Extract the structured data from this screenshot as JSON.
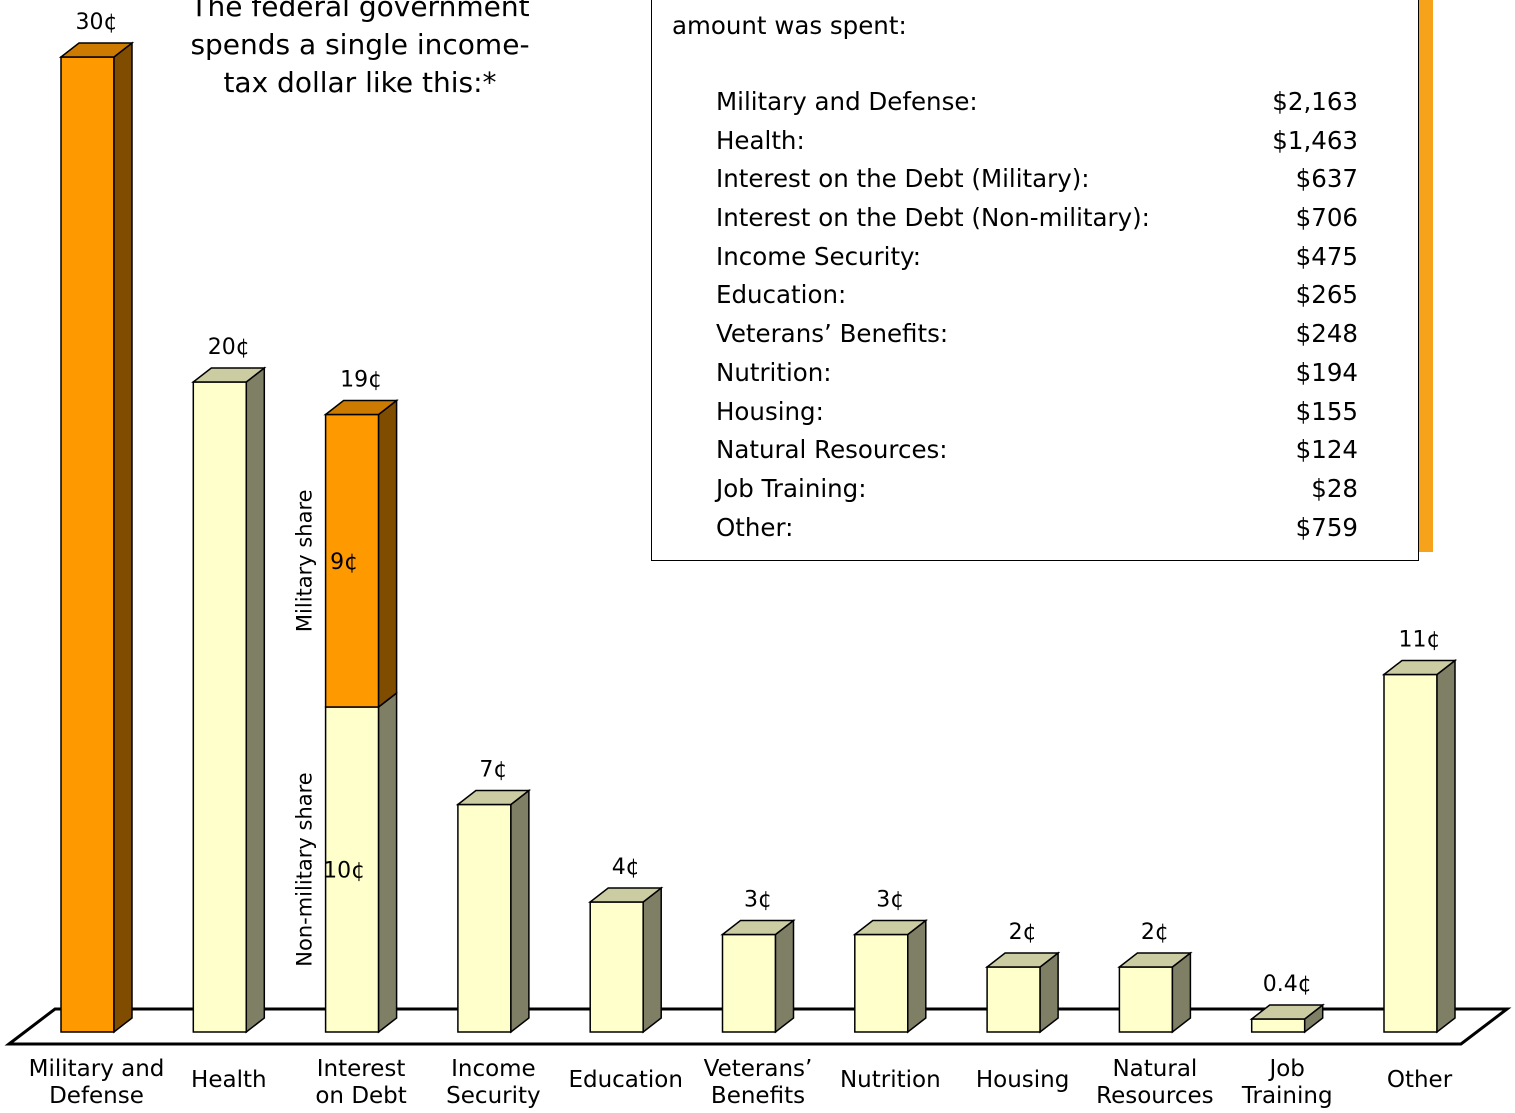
{
  "intro_text": "The federal government spends a single income-tax dollar like this:*",
  "panel": {
    "intro": "amount was spent:",
    "rows": [
      {
        "label": "Military and Defense:",
        "amount": "$2,163"
      },
      {
        "label": "Health:",
        "amount": "$1,463"
      },
      {
        "label": "Interest on the Debt (Military):",
        "amount": "$637"
      },
      {
        "label": "Interest on the Debt (Non-military):",
        "amount": "$706"
      },
      {
        "label": "Income Security:",
        "amount": "$475"
      },
      {
        "label": "Education:",
        "amount": "$265"
      },
      {
        "label": "Veterans’ Benefits:",
        "amount": "$248"
      },
      {
        "label": "Nutrition:",
        "amount": "$194"
      },
      {
        "label": "Housing:",
        "amount": "$155"
      },
      {
        "label": "Natural Resources:",
        "amount": "$124"
      },
      {
        "label": "Job Training:",
        "amount": "$28"
      },
      {
        "label": "Other:",
        "amount": "$759"
      }
    ]
  },
  "chart_data": {
    "type": "bar",
    "unit": "¢",
    "grid": false,
    "legend": "none",
    "ylim": [
      0,
      30
    ],
    "categories": [
      [
        "Military and",
        "Defense"
      ],
      [
        "Health"
      ],
      [
        "Interest",
        "on Debt"
      ],
      [
        "Income",
        "Security"
      ],
      [
        "Education"
      ],
      [
        "Veterans’",
        "Benefits"
      ],
      [
        "Nutrition"
      ],
      [
        "Housing"
      ],
      [
        "Natural",
        "Resources"
      ],
      [
        "Job",
        "Training"
      ],
      [
        "Other"
      ]
    ],
    "values": [
      30,
      20,
      19,
      7,
      4,
      3,
      3,
      2,
      2,
      0.4,
      11
    ],
    "value_labels": [
      "30¢",
      "20¢",
      "19¢",
      "7¢",
      "4¢",
      "3¢",
      "3¢",
      "2¢",
      "2¢",
      "0.4¢",
      "11¢"
    ],
    "stacked": {
      "category_index": 2,
      "segments": [
        {
          "name": "Non-military share",
          "value": 10,
          "label": "10¢",
          "color": "#ffffcc"
        },
        {
          "name": "Military share",
          "value": 9,
          "label": "9¢",
          "color": "#ff9900"
        }
      ]
    },
    "colors": {
      "military": "#ff9900",
      "military_top": "#cc7a00",
      "military_side": "#7f4c00",
      "civil": "#ffffcc",
      "civil_top": "#cccca3",
      "civil_side": "#7f7f66"
    }
  }
}
